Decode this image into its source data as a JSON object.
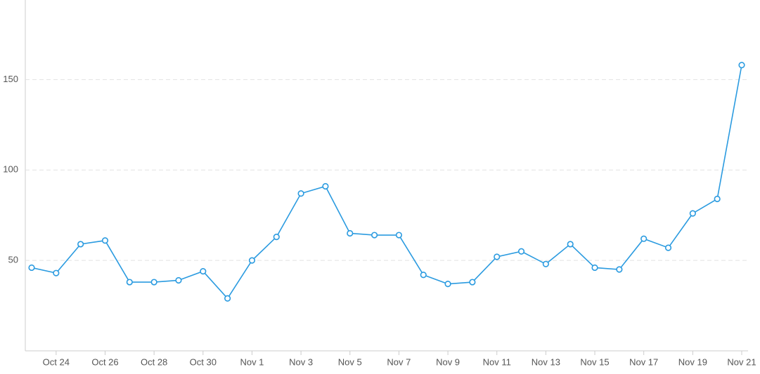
{
  "chart_data": {
    "type": "line",
    "categories": [
      null,
      "Oct 24",
      null,
      "Oct 26",
      null,
      "Oct 28",
      null,
      "Oct 30",
      null,
      "Nov 1",
      null,
      "Nov 3",
      null,
      "Nov 5",
      null,
      "Nov 7",
      null,
      "Nov 9",
      null,
      "Nov 11",
      null,
      "Nov 13",
      null,
      "Nov 15",
      null,
      "Nov 17",
      null,
      "Nov 19",
      null,
      "Nov 21"
    ],
    "values": [
      46,
      43,
      59,
      61,
      38,
      38,
      39,
      44,
      29,
      50,
      63,
      87,
      91,
      65,
      64,
      64,
      42,
      37,
      38,
      52,
      55,
      48,
      59,
      46,
      45,
      62,
      57,
      76,
      84,
      158
    ],
    "color": "#2b9be0",
    "ylim": [
      0,
      194
    ],
    "yticks": [
      50,
      100,
      150
    ],
    "grid": true
  }
}
